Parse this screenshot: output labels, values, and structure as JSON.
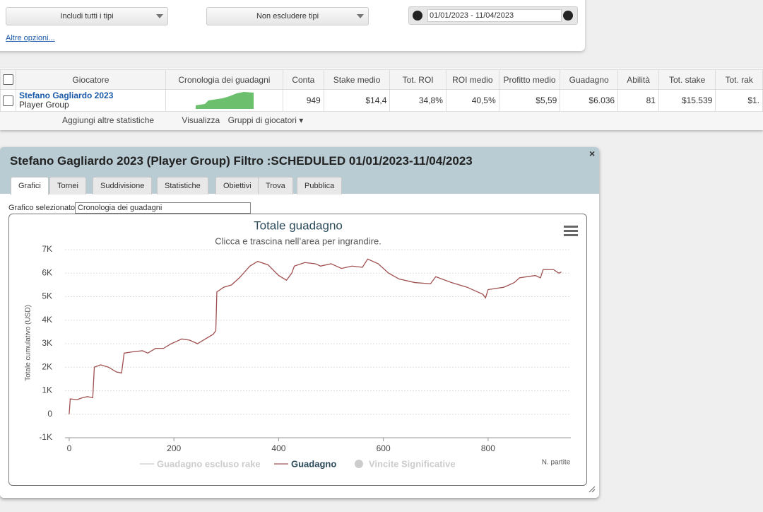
{
  "filters": {
    "include": "Includi tutti i tipi",
    "exclude": "Non escludere tipi",
    "date_range": "01/01/2023 - 11/04/2023",
    "more_options": "Altre opzioni..."
  },
  "table": {
    "headers": [
      "Giocatore",
      "Cronologia dei guadagni",
      "Conta",
      "Stake medio",
      "Tot. ROI",
      "ROI medio",
      "Profitto medio",
      "Guadagno",
      "Abilità",
      "Tot. stake",
      "Tot. rak"
    ],
    "rows": [
      {
        "player": "Stefano Gagliardo 2023",
        "group": "Player Group",
        "cells": [
          "949",
          "$14,4",
          "34,8%",
          "40,5%",
          "$5,59",
          "$6.036",
          "81",
          "$15.539",
          "$1."
        ]
      }
    ]
  },
  "toolbar": [
    "Aggiungi altre statistiche",
    "Visualizza",
    "Gruppi di giocatori"
  ],
  "dialog": {
    "title": "Stefano Gagliardo 2023 (Player Group) Filtro :SCHEDULED 01/01/2023-11/04/2023",
    "tabs": [
      "Grafici",
      "Tornei",
      "Suddivisione",
      "Statistiche",
      "Obiettivi",
      "Trova",
      "Pubblica"
    ],
    "chart_select_label": "Grafico selezionato",
    "chart_select_value": "Cronologia dei guadagni"
  },
  "chart_data": {
    "type": "line",
    "title": "Totale guadagno",
    "subtitle": "Clicca e trascina nell’area per ingrandire.",
    "y_label": "Totale cumulativo (USD)",
    "x_label": "N. partite",
    "xlim": [
      -8,
      958
    ],
    "xticks": [
      0,
      200,
      400,
      600,
      800
    ],
    "ylim": [
      -1000,
      7000
    ],
    "yticks": [
      {
        "value": -1000,
        "label": "-1K"
      },
      0,
      {
        "value": 1000,
        "label": "1K"
      },
      {
        "value": 2000,
        "label": "2K"
      },
      {
        "value": 3000,
        "label": "3K"
      },
      {
        "value": 4000,
        "label": "4K"
      },
      {
        "value": 5000,
        "label": "5K"
      },
      {
        "value": 6000,
        "label": "6K"
      },
      {
        "value": 7000,
        "label": "7K"
      }
    ],
    "grid": true,
    "x": [
      0,
      2,
      15,
      25,
      35,
      45,
      48,
      60,
      75,
      90,
      100,
      105,
      120,
      140,
      150,
      165,
      180,
      195,
      205,
      215,
      230,
      245,
      260,
      275,
      280,
      282,
      295,
      310,
      325,
      345,
      360,
      380,
      400,
      415,
      425,
      430,
      450,
      470,
      480,
      500,
      520,
      540,
      560,
      570,
      590,
      610,
      630,
      660,
      690,
      700,
      730,
      760,
      790,
      795,
      800,
      830,
      850,
      860,
      890,
      900,
      905,
      925,
      935,
      940
    ],
    "series": [
      {
        "name": "Guadagno escluso rake",
        "color": "#cccccc",
        "visible": false
      },
      {
        "name": "Guadagno",
        "color": "#a05050",
        "visible": true,
        "values": [
          0,
          650,
          620,
          700,
          750,
          700,
          2000,
          2100,
          2000,
          1800,
          1750,
          2600,
          2650,
          2700,
          2600,
          2800,
          2800,
          3000,
          3100,
          3200,
          3150,
          3000,
          3200,
          3400,
          3550,
          5200,
          5400,
          5500,
          5800,
          6300,
          6500,
          6350,
          5900,
          5700,
          6000,
          6300,
          6450,
          6400,
          6300,
          6400,
          6200,
          6300,
          6250,
          6600,
          6400,
          6000,
          5750,
          5600,
          5550,
          5850,
          5600,
          5400,
          5100,
          4950,
          5300,
          5400,
          5600,
          5800,
          5900,
          5800,
          6150,
          6150,
          6000,
          6050
        ]
      },
      {
        "name": "Vincite Significative",
        "color": "#cccccc",
        "visible": false,
        "marker": "circle"
      }
    ]
  }
}
